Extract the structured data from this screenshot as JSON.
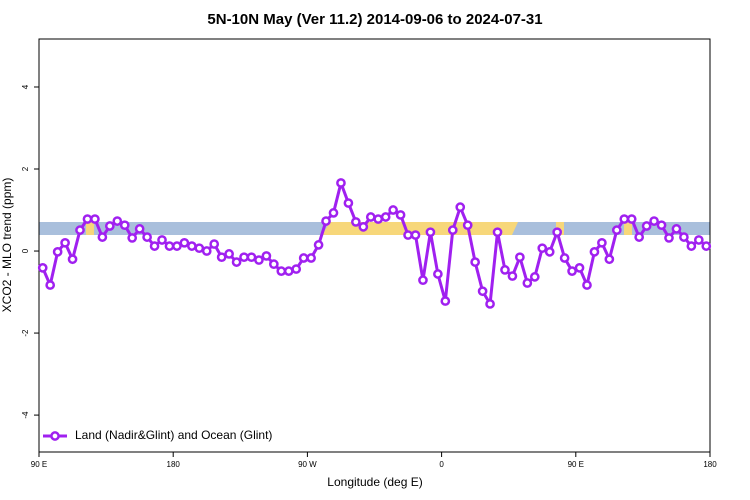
{
  "chart_data": {
    "type": "line",
    "title": "5N-10N May (Ver 11.2)   2014-09-06 to 2024-07-31",
    "x_label": "Longitude (deg E)",
    "y_label": "XCO2 - MLO trend (ppm)",
    "x": [
      92.5,
      97.5,
      102.5,
      107.5,
      112.5,
      117.5,
      122.5,
      127.5,
      132.5,
      137.5,
      142.5,
      147.5,
      152.5,
      157.5,
      162.5,
      167.5,
      172.5,
      177.5,
      182.5,
      187.5,
      192.5,
      197.5,
      202.5,
      207.5,
      212.5,
      217.5,
      222.5,
      227.5,
      232.5,
      237.5,
      242.5,
      247.5,
      252.5,
      257.5,
      262.5,
      267.5,
      272.5,
      277.5,
      282.5,
      287.5,
      292.5,
      297.5,
      302.5,
      307.5,
      312.5,
      317.5,
      322.5,
      327.5,
      332.5,
      337.5,
      342.5,
      347.5,
      352.5,
      357.5,
      362.5,
      367.5,
      372.5,
      377.5,
      382.5,
      387.5,
      392.5,
      397.5,
      402.5,
      407.5,
      412.5,
      417.5,
      422.5,
      427.5,
      432.5,
      437.5,
      442.5,
      447.5,
      452.5,
      457.5,
      462.5,
      467.5,
      472.5,
      477.5,
      482.5,
      487.5,
      492.5,
      497.5,
      502.5,
      507.5,
      512.5,
      517.5,
      522.5,
      527.5,
      532.5,
      537.5
    ],
    "series": [
      {
        "name": "Land (Nadir&Glint) and Ocean (Glint)",
        "color": "#a020f0",
        "values": [
          -0.41,
          -0.83,
          -0.02,
          0.2,
          -0.2,
          0.51,
          0.78,
          0.78,
          0.34,
          0.61,
          0.73,
          0.63,
          0.32,
          0.54,
          0.34,
          0.12,
          0.27,
          0.12,
          0.12,
          0.2,
          0.12,
          0.07,
          0,
          0.17,
          -0.15,
          -0.07,
          -0.27,
          -0.15,
          -0.15,
          -0.22,
          -0.12,
          -0.32,
          -0.49,
          -0.49,
          -0.44,
          -0.17,
          -0.17,
          0.15,
          0.73,
          0.93,
          1.66,
          1.17,
          0.71,
          0.59,
          0.83,
          0.78,
          0.83,
          1.0,
          0.88,
          0.39,
          0.39,
          -0.71,
          0.46,
          -0.56,
          -1.22,
          0.51,
          1.07,
          0.63,
          -0.27,
          -0.98,
          -1.29,
          0.46,
          -0.46,
          -0.61,
          -0.15,
          -0.78,
          -0.63,
          0.07,
          -0.02,
          0.46,
          -0.17,
          -0.49,
          -0.41,
          -0.83,
          -0.02,
          0.2,
          -0.2,
          0.51,
          0.78,
          0.78,
          0.34,
          0.61,
          0.73,
          0.63,
          0.32,
          0.54,
          0.34,
          0.12,
          0.27,
          0.12
        ]
      }
    ],
    "xlim": [
      90,
      540
    ],
    "xticks": [
      {
        "value": 90,
        "label": "90 E"
      },
      180,
      {
        "value": 270,
        "label": "90 W"
      },
      {
        "value": 360,
        "label": "0"
      },
      {
        "value": 450,
        "label": "90 E"
      },
      {
        "value": 540,
        "label": "180"
      }
    ],
    "ylim": [
      -4.9,
      5.17
    ],
    "yticks": [
      -4,
      -2,
      0,
      2,
      4
    ],
    "legend": "bottom-left"
  }
}
